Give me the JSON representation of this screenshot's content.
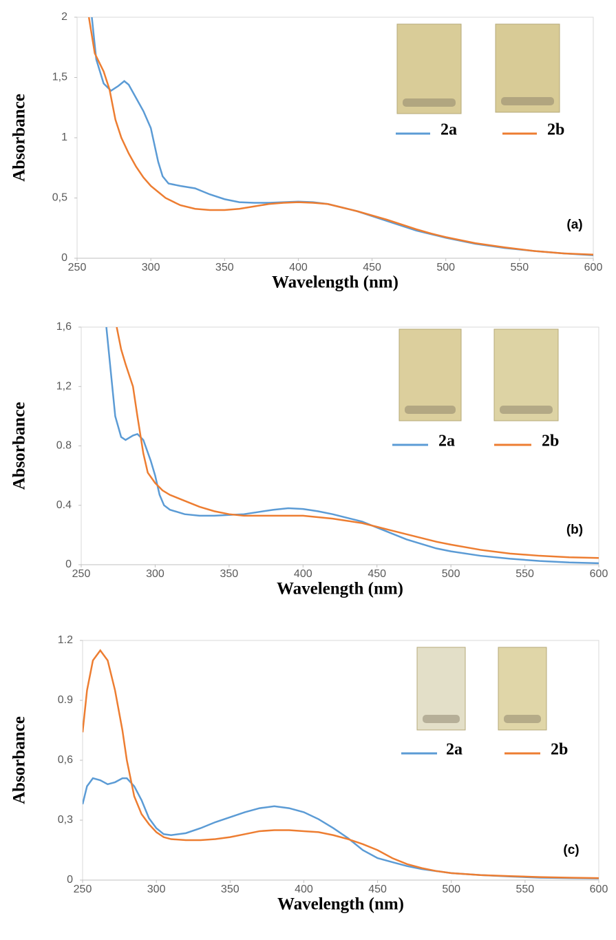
{
  "chart_data": [
    {
      "type": "line",
      "xlabel": "Wavelength (nm)",
      "ylabel": "Absorbance",
      "annotation": "(a)",
      "xlim": [
        250,
        600
      ],
      "xticks": [
        250,
        300,
        350,
        400,
        450,
        500,
        550,
        600
      ],
      "ylim": [
        0,
        2
      ],
      "yticks": [
        0,
        {
          "value": 0.5,
          "label": "0,5"
        },
        1,
        {
          "value": 1.5,
          "label": "1,5"
        },
        2
      ],
      "series": [
        {
          "name": "2a",
          "color": "#5b9bd5",
          "x": [
            260,
            263,
            268,
            273,
            278,
            282,
            285,
            290,
            295,
            300,
            305,
            308,
            312,
            320,
            330,
            340,
            350,
            360,
            370,
            380,
            390,
            400,
            410,
            420,
            430,
            440,
            450,
            460,
            470,
            480,
            490,
            500,
            520,
            540,
            560,
            580,
            600
          ],
          "values": [
            2.0,
            1.65,
            1.45,
            1.39,
            1.43,
            1.47,
            1.44,
            1.33,
            1.22,
            1.08,
            0.8,
            0.68,
            0.62,
            0.6,
            0.58,
            0.53,
            0.49,
            0.465,
            0.46,
            0.46,
            0.465,
            0.47,
            0.465,
            0.45,
            0.42,
            0.39,
            0.35,
            0.31,
            0.27,
            0.23,
            0.2,
            0.17,
            0.12,
            0.085,
            0.06,
            0.04,
            0.025
          ]
        },
        {
          "name": "2b",
          "color": "#ed7d31",
          "x": [
            258,
            262,
            268,
            272,
            276,
            280,
            285,
            290,
            295,
            300,
            305,
            310,
            320,
            330,
            340,
            350,
            360,
            370,
            380,
            390,
            400,
            410,
            420,
            430,
            440,
            450,
            460,
            470,
            480,
            490,
            500,
            520,
            540,
            560,
            580,
            600
          ],
          "values": [
            2.0,
            1.7,
            1.55,
            1.4,
            1.15,
            1.0,
            0.87,
            0.76,
            0.67,
            0.6,
            0.55,
            0.5,
            0.44,
            0.41,
            0.4,
            0.4,
            0.41,
            0.43,
            0.45,
            0.46,
            0.465,
            0.46,
            0.45,
            0.42,
            0.39,
            0.355,
            0.32,
            0.28,
            0.24,
            0.205,
            0.175,
            0.125,
            0.09,
            0.06,
            0.04,
            0.03
          ]
        }
      ]
    },
    {
      "type": "line",
      "xlabel": "Wavelength (nm)",
      "ylabel": "Absorbance",
      "annotation": "(b)",
      "xlim": [
        250,
        600
      ],
      "xticks": [
        250,
        300,
        350,
        400,
        450,
        500,
        550,
        600
      ],
      "ylim": [
        0,
        1.6
      ],
      "yticks": [
        0,
        0.4,
        0.8,
        {
          "value": 1.2,
          "label": "1,2"
        },
        {
          "value": 1.6,
          "label": "1,6"
        }
      ],
      "series": [
        {
          "name": "2a",
          "color": "#5b9bd5",
          "x": [
            267,
            270,
            273,
            277,
            280,
            285,
            288,
            292,
            297,
            300,
            303,
            306,
            310,
            320,
            330,
            340,
            350,
            360,
            370,
            380,
            390,
            400,
            410,
            420,
            430,
            440,
            450,
            460,
            470,
            480,
            490,
            500,
            520,
            540,
            560,
            580,
            600
          ],
          "values": [
            1.6,
            1.3,
            1.0,
            0.86,
            0.84,
            0.87,
            0.88,
            0.84,
            0.7,
            0.6,
            0.47,
            0.4,
            0.37,
            0.34,
            0.33,
            0.33,
            0.335,
            0.34,
            0.355,
            0.37,
            0.38,
            0.375,
            0.36,
            0.34,
            0.315,
            0.29,
            0.25,
            0.21,
            0.17,
            0.14,
            0.11,
            0.09,
            0.06,
            0.04,
            0.025,
            0.015,
            0.01
          ]
        },
        {
          "name": "2b",
          "color": "#ed7d31",
          "x": [
            274,
            277,
            280,
            285,
            288,
            292,
            295,
            300,
            305,
            310,
            320,
            330,
            340,
            350,
            360,
            370,
            380,
            390,
            400,
            410,
            420,
            430,
            440,
            450,
            460,
            470,
            480,
            490,
            500,
            520,
            540,
            560,
            580,
            600
          ],
          "values": [
            1.6,
            1.45,
            1.35,
            1.2,
            1.0,
            0.75,
            0.62,
            0.55,
            0.5,
            0.47,
            0.43,
            0.39,
            0.36,
            0.34,
            0.33,
            0.33,
            0.33,
            0.33,
            0.33,
            0.32,
            0.31,
            0.295,
            0.28,
            0.255,
            0.23,
            0.205,
            0.18,
            0.155,
            0.135,
            0.1,
            0.075,
            0.06,
            0.05,
            0.045
          ]
        }
      ]
    },
    {
      "type": "line",
      "xlabel": "Wavelength (nm)",
      "ylabel": "Absorbance",
      "annotation": "(c)",
      "xlim": [
        250,
        600
      ],
      "xticks": [
        250,
        300,
        350,
        400,
        450,
        500,
        550,
        600
      ],
      "ylim": [
        0,
        1.2
      ],
      "yticks": [
        0,
        {
          "value": 0.3,
          "label": "0,3"
        },
        {
          "value": 0.6,
          "label": "0,6"
        },
        0.9,
        1.2
      ],
      "series": [
        {
          "name": "2a",
          "color": "#5b9bd5",
          "x": [
            250,
            253,
            257,
            262,
            267,
            272,
            277,
            280,
            285,
            290,
            295,
            300,
            305,
            310,
            320,
            330,
            340,
            350,
            360,
            370,
            380,
            390,
            400,
            410,
            420,
            430,
            440,
            450,
            460,
            470,
            480,
            490,
            500,
            520,
            540,
            560,
            580,
            600
          ],
          "values": [
            0.38,
            0.47,
            0.51,
            0.5,
            0.48,
            0.49,
            0.51,
            0.51,
            0.47,
            0.4,
            0.31,
            0.26,
            0.23,
            0.225,
            0.235,
            0.26,
            0.29,
            0.315,
            0.34,
            0.36,
            0.37,
            0.36,
            0.34,
            0.305,
            0.26,
            0.21,
            0.15,
            0.11,
            0.09,
            0.07,
            0.055,
            0.045,
            0.035,
            0.025,
            0.018,
            0.012,
            0.01,
            0.008
          ]
        },
        {
          "name": "2b",
          "color": "#ed7d31",
          "x": [
            250,
            253,
            257,
            262,
            267,
            272,
            277,
            280,
            285,
            290,
            295,
            300,
            305,
            310,
            320,
            330,
            340,
            350,
            360,
            370,
            380,
            390,
            400,
            410,
            420,
            430,
            440,
            450,
            460,
            470,
            480,
            490,
            500,
            520,
            540,
            560,
            580,
            600
          ],
          "values": [
            0.74,
            0.95,
            1.1,
            1.15,
            1.1,
            0.95,
            0.75,
            0.6,
            0.42,
            0.33,
            0.28,
            0.24,
            0.215,
            0.205,
            0.2,
            0.2,
            0.205,
            0.215,
            0.23,
            0.245,
            0.25,
            0.25,
            0.245,
            0.24,
            0.225,
            0.205,
            0.18,
            0.15,
            0.11,
            0.08,
            0.06,
            0.045,
            0.035,
            0.025,
            0.02,
            0.015,
            0.012,
            0.01
          ]
        }
      ]
    }
  ]
}
